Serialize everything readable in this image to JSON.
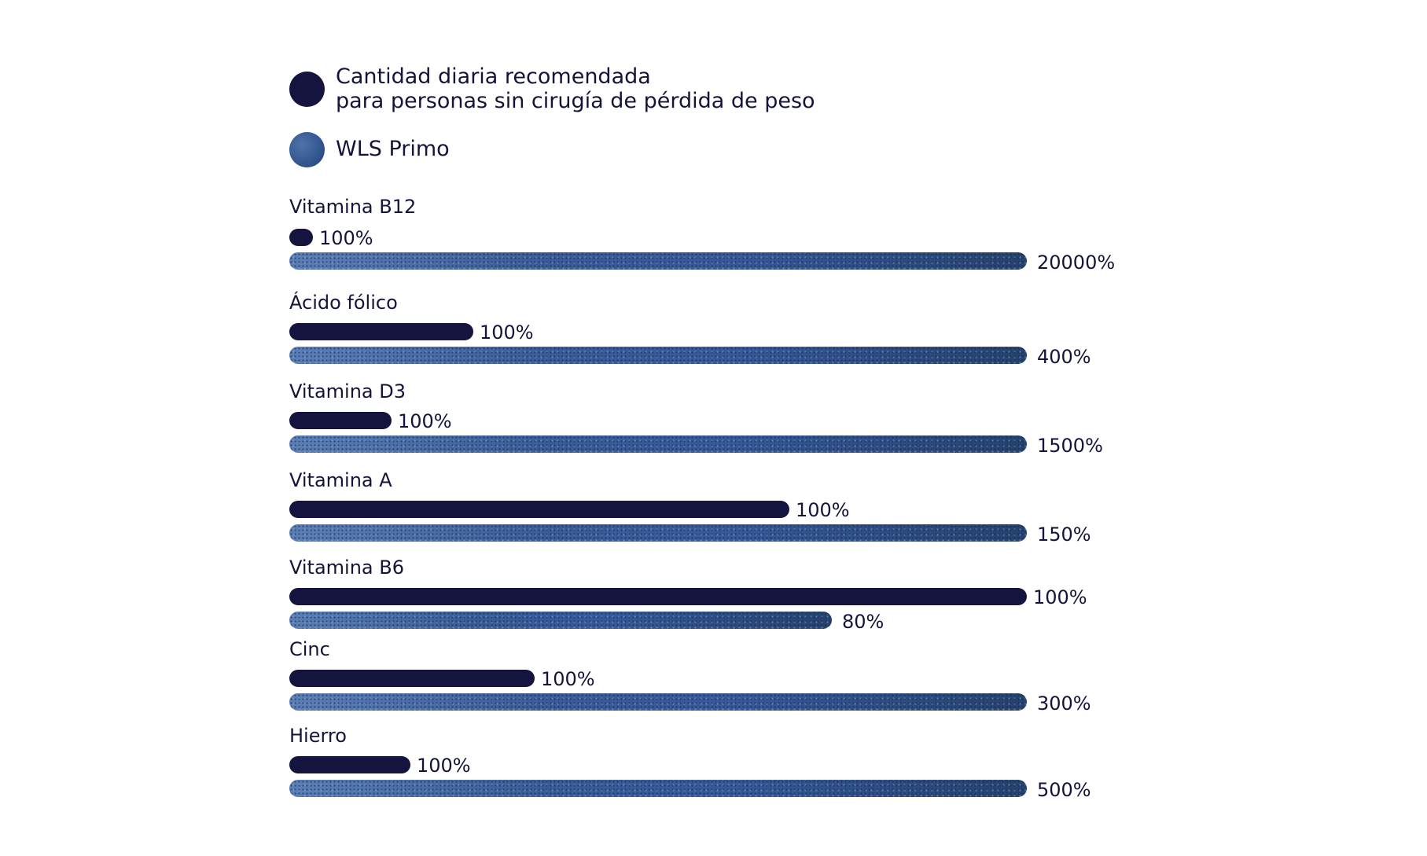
{
  "chart_data": {
    "type": "bar",
    "orientation": "horizontal",
    "legend": [
      {
        "key": "rda",
        "lines": [
          "Cantidad diaria recomendada",
          "para personas sin cirugía de pérdida de peso"
        ],
        "color": "#14143f"
      },
      {
        "key": "wls",
        "lines": [
          "WLS Primo"
        ],
        "color": "#3a5a96"
      }
    ],
    "categories": [
      "Vitamina B12",
      "Ácido fólico",
      "Vitamina D3",
      "Vitamina A",
      "Vitamina B6",
      "Cinc",
      "Hierro"
    ],
    "series": [
      {
        "name": "Cantidad diaria recomendada para personas sin cirugía de pérdida de peso",
        "labels": [
          "100%",
          "100%",
          "100%",
          "100%",
          "100%",
          "100%",
          "100%"
        ],
        "values": [
          100,
          100,
          100,
          100,
          100,
          100,
          100
        ]
      },
      {
        "name": "WLS Primo",
        "labels": [
          "20000%",
          "400%",
          "1500%",
          "150%",
          "80%",
          "300%",
          "500%"
        ],
        "values": [
          20000,
          400,
          1500,
          150,
          80,
          300,
          500
        ]
      }
    ],
    "legend_position": "top-left",
    "grid": false
  }
}
